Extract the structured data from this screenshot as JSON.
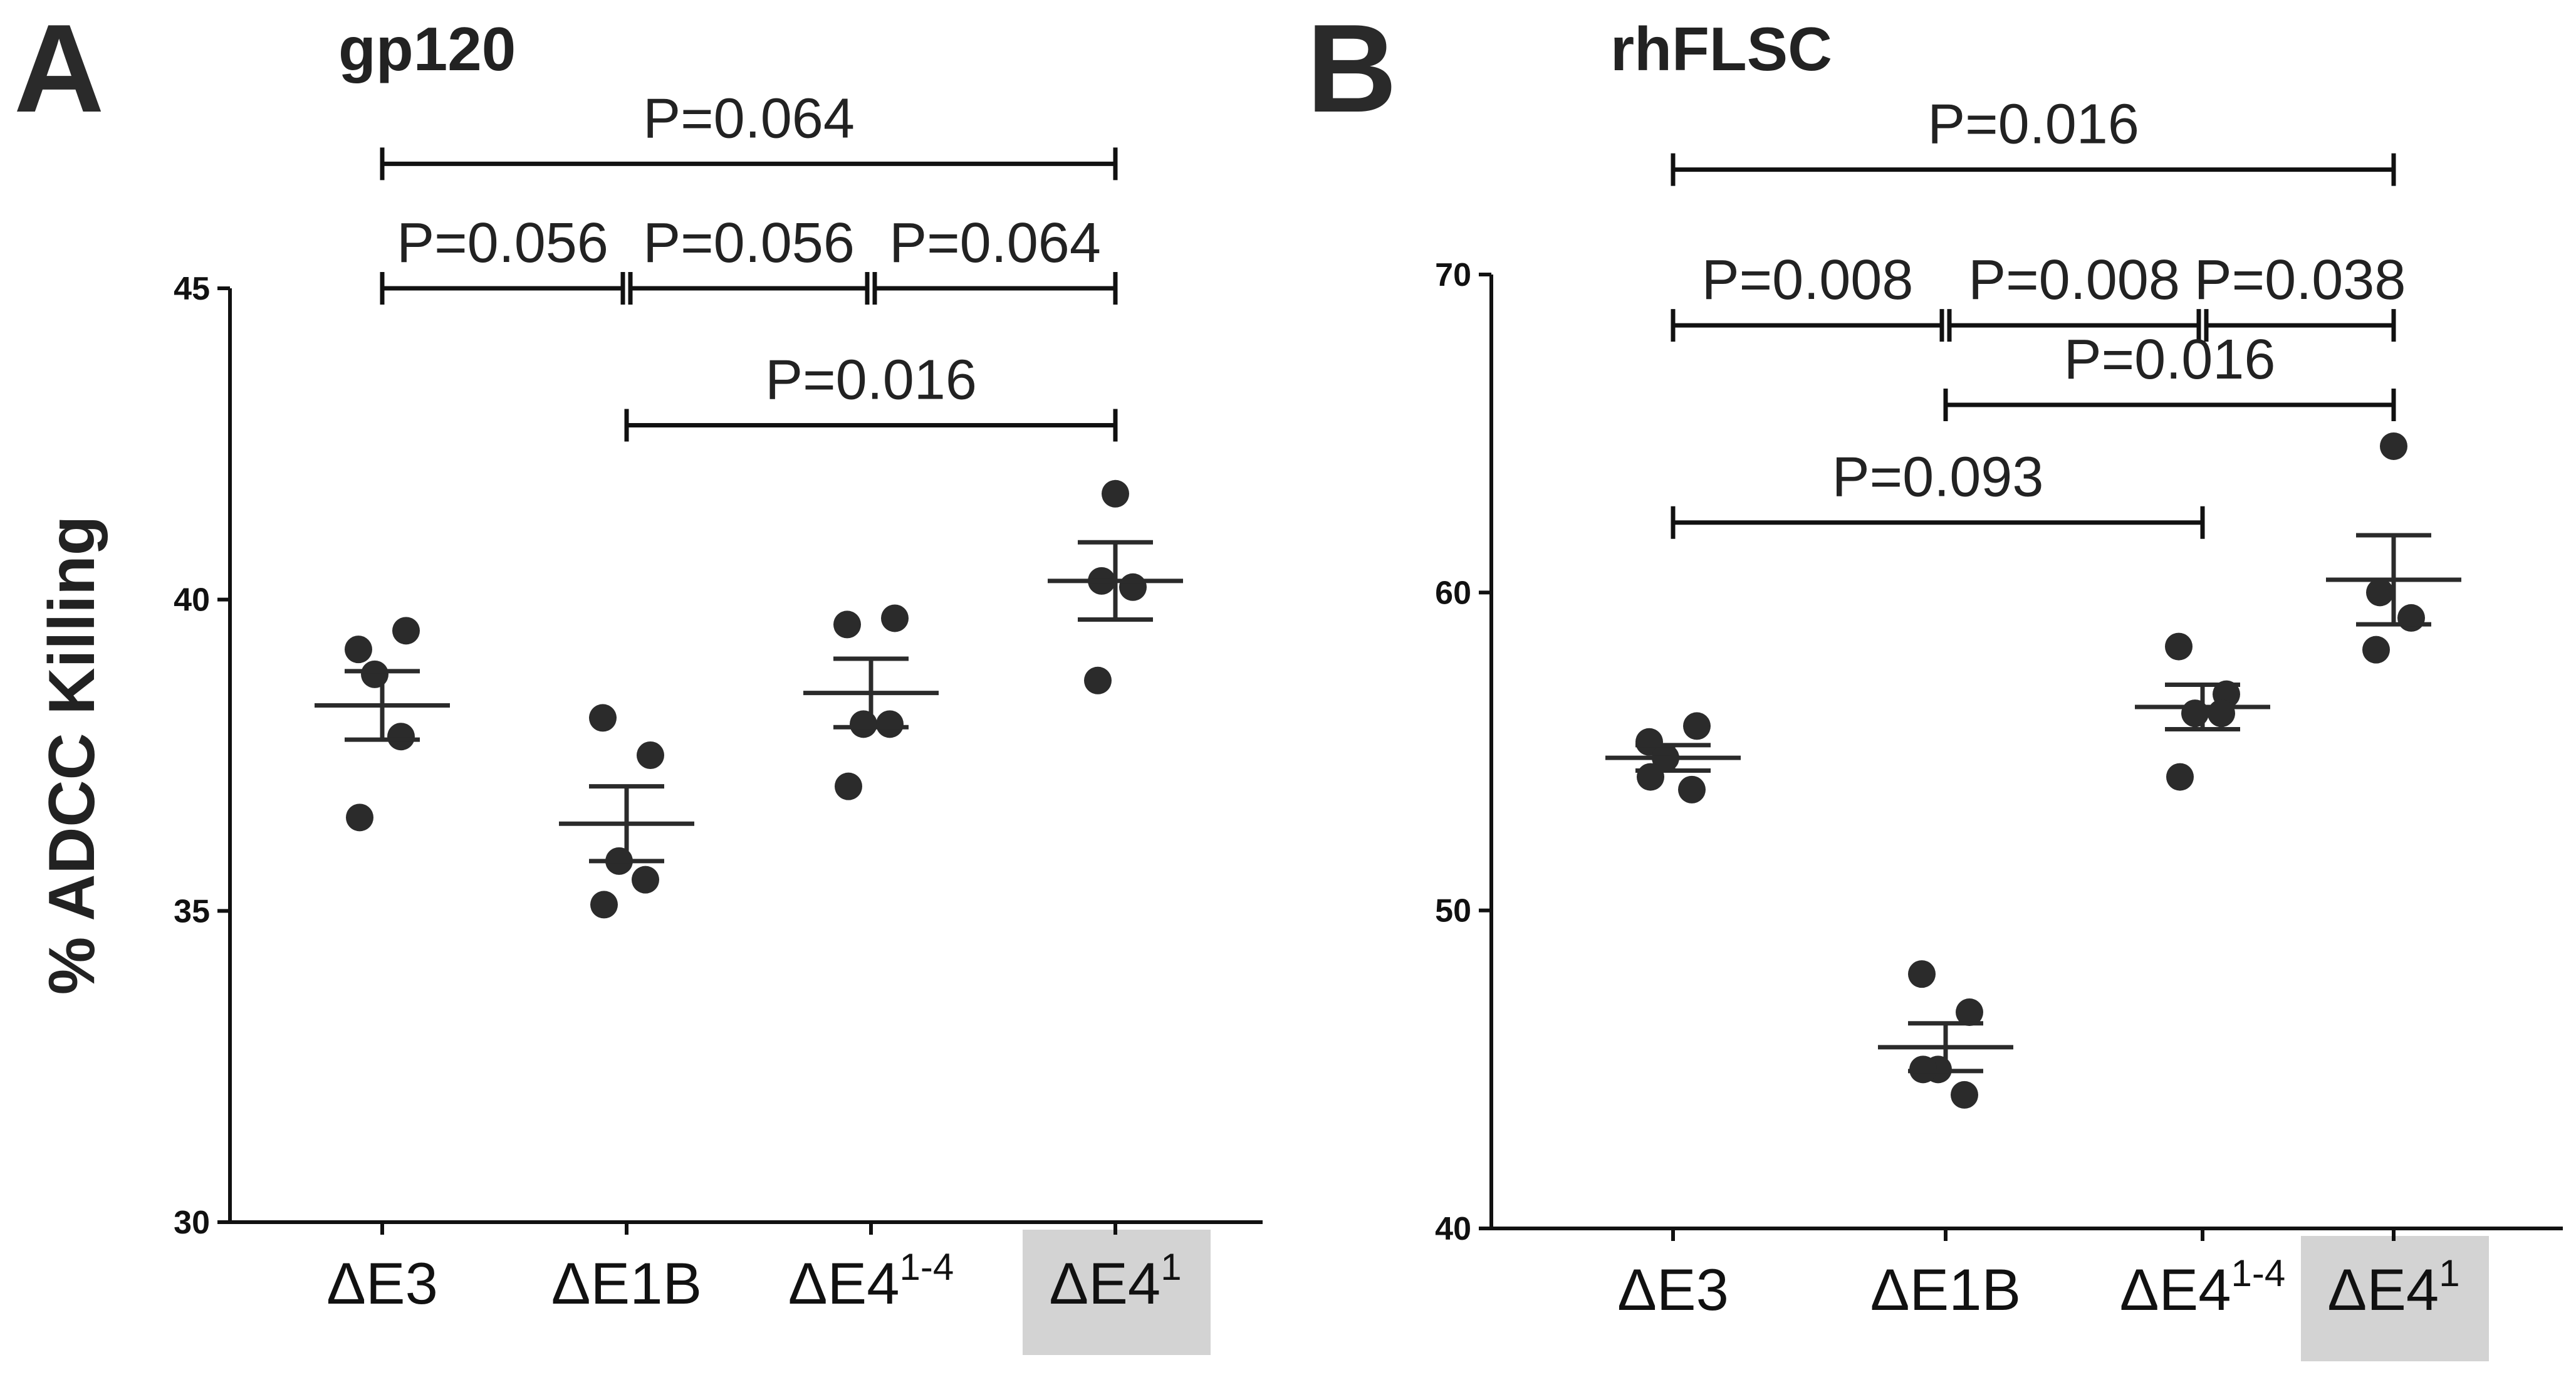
{
  "chart_data": [
    {
      "type": "scatter",
      "panel_label": "A",
      "title": "gp120",
      "ylabel": "% ADCC Killing",
      "xlabel": "",
      "ylim": [
        30,
        45
      ],
      "yticks": [
        30,
        35,
        40,
        45
      ],
      "categories": [
        {
          "base": "ΔE3",
          "sup": "",
          "highlight": false
        },
        {
          "base": "ΔE1B",
          "sup": "",
          "highlight": false
        },
        {
          "base": "ΔE4",
          "sup": "1-4",
          "highlight": false
        },
        {
          "base": "ΔE4",
          "sup": "1",
          "highlight": true
        }
      ],
      "points": [
        [
          39.2,
          39.5,
          38.8,
          37.8,
          36.5
        ],
        [
          38.1,
          37.5,
          35.8,
          35.5,
          35.1
        ],
        [
          39.6,
          39.7,
          38.0,
          38.0,
          37.0
        ],
        [
          41.7,
          40.3,
          40.2,
          38.7
        ]
      ],
      "mean": [
        38.3,
        36.4,
        38.5,
        40.3
      ],
      "sem": [
        0.55,
        0.6,
        0.55,
        0.62
      ],
      "comparisons": [
        {
          "from": 0,
          "to": 3,
          "label": "P=0.064",
          "y": 47.0
        },
        {
          "from": 0,
          "to": 1,
          "label": "P=0.056",
          "y": 45.0
        },
        {
          "from": 1,
          "to": 2,
          "label": "P=0.056",
          "y": 45.0
        },
        {
          "from": 2,
          "to": 3,
          "label": "P=0.064",
          "y": 45.0
        },
        {
          "from": 1,
          "to": 3,
          "label": "P=0.016",
          "y": 42.8
        }
      ]
    },
    {
      "type": "scatter",
      "panel_label": "B",
      "title": "rhFLSC",
      "ylabel": "",
      "xlabel": "",
      "ylim": [
        40,
        70
      ],
      "yticks": [
        40,
        50,
        60,
        70
      ],
      "categories": [
        {
          "base": "ΔE3",
          "sup": "",
          "highlight": false
        },
        {
          "base": "ΔE1B",
          "sup": "",
          "highlight": false
        },
        {
          "base": "ΔE4",
          "sup": "1-4",
          "highlight": false
        },
        {
          "base": "ΔE4",
          "sup": "1",
          "highlight": true
        }
      ],
      "points": [
        [
          55.3,
          55.8,
          54.8,
          53.8,
          54.2
        ],
        [
          48.0,
          46.8,
          45.0,
          44.2,
          45.0
        ],
        [
          58.3,
          56.8,
          56.2,
          56.2,
          54.2
        ],
        [
          64.6,
          60.0,
          59.2,
          58.2
        ]
      ],
      "mean": [
        54.8,
        45.7,
        56.4,
        60.4
      ],
      "sem": [
        0.4,
        0.75,
        0.7,
        1.4
      ],
      "comparisons": [
        {
          "from": 0,
          "to": 3,
          "label": "P=0.016",
          "y": 73.3
        },
        {
          "from": 0,
          "to": 1,
          "label": "P=0.008",
          "y": 68.4
        },
        {
          "from": 1,
          "to": 2,
          "label": "P=0.008",
          "y": 68.4
        },
        {
          "from": 2,
          "to": 3,
          "label": "P=0.038",
          "y": 68.4
        },
        {
          "from": 1,
          "to": 3,
          "label": "P=0.016",
          "y": 65.9
        },
        {
          "from": 0,
          "to": 2,
          "label": "P=0.093",
          "y": 62.2
        }
      ]
    }
  ]
}
